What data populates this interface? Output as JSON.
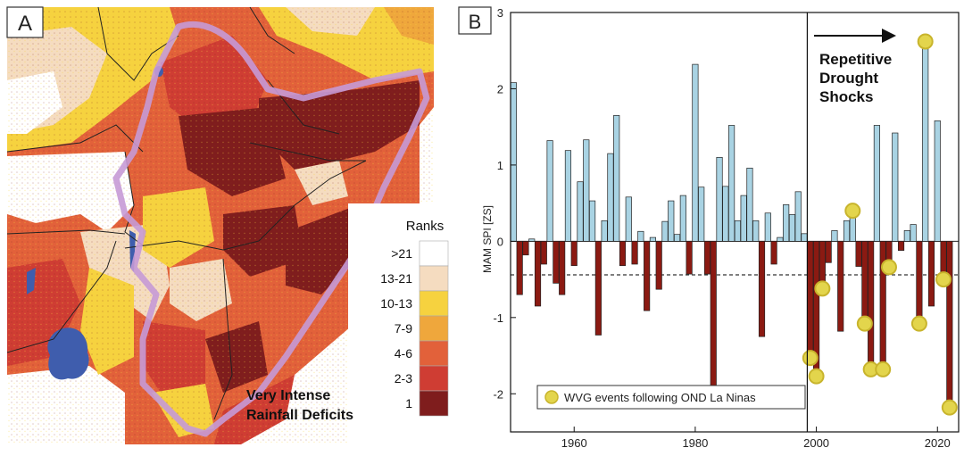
{
  "panel_a": {
    "label": "A",
    "legend_title": "Ranks",
    "legend": [
      {
        "label": ">21",
        "color": "#ffffff"
      },
      {
        "label": "13-21",
        "color": "#f5dcc0"
      },
      {
        "label": "10-13",
        "color": "#f6d23f"
      },
      {
        "label": "7-9",
        "color": "#efa73c"
      },
      {
        "label": "4-6",
        "color": "#e2613a"
      },
      {
        "label": "2-3",
        "color": "#cf3d33"
      },
      {
        "label": "1",
        "color": "#7f1d1d"
      }
    ],
    "annotation_line1": "Very Intense",
    "annotation_line2": "Rainfall Deficits",
    "outline_color": "#c79ad6"
  },
  "panel_b": {
    "label": "B",
    "arrow_text_1": "Repetitive",
    "arrow_text_2": "Drought",
    "arrow_text_3": "Shocks",
    "legend_label": "WVG events following OND La Ninas",
    "colors": {
      "positive": "#a9d3e3",
      "negative": "#8b1a12",
      "marker": "#e3d54c",
      "marker_edge": "#c8b42c"
    }
  },
  "chart_data": {
    "type": "bar",
    "ylabel": "MAM SPI [ZS]",
    "xlim": [
      1949.5,
      2023.5
    ],
    "ylim": [
      -2.5,
      3
    ],
    "xticks": [
      1960,
      1980,
      2000,
      2020
    ],
    "yticks": [
      -2,
      -1,
      0,
      1,
      2,
      3
    ],
    "threshold": -0.44,
    "divider_year": 1998.5,
    "years": [
      1950,
      1951,
      1952,
      1953,
      1954,
      1955,
      1956,
      1957,
      1958,
      1959,
      1960,
      1961,
      1962,
      1963,
      1964,
      1965,
      1966,
      1967,
      1968,
      1969,
      1970,
      1971,
      1972,
      1973,
      1974,
      1975,
      1976,
      1977,
      1978,
      1979,
      1980,
      1981,
      1982,
      1983,
      1984,
      1985,
      1986,
      1987,
      1988,
      1989,
      1990,
      1991,
      1992,
      1993,
      1994,
      1995,
      1996,
      1997,
      1998,
      1999,
      2000,
      2001,
      2002,
      2003,
      2004,
      2005,
      2006,
      2007,
      2008,
      2009,
      2010,
      2011,
      2012,
      2013,
      2014,
      2015,
      2016,
      2017,
      2018,
      2019,
      2020,
      2021,
      2022
    ],
    "values": [
      2.08,
      -0.7,
      -0.18,
      0.03,
      -0.85,
      -0.3,
      1.32,
      -0.55,
      -0.7,
      1.19,
      -0.32,
      0.78,
      1.33,
      0.53,
      -1.23,
      0.27,
      1.15,
      1.65,
      -0.32,
      0.58,
      -0.3,
      0.13,
      -0.91,
      0.05,
      -0.63,
      0.26,
      0.53,
      0.09,
      0.6,
      -0.43,
      2.32,
      0.71,
      -0.43,
      -1.9,
      1.1,
      0.72,
      1.52,
      0.27,
      0.6,
      0.96,
      0.27,
      -1.25,
      0.37,
      -0.3,
      0.05,
      0.48,
      0.35,
      0.65,
      0.1,
      -1.53,
      -1.77,
      -0.62,
      -0.28,
      0.14,
      -1.18,
      0.27,
      0.4,
      -0.33,
      -1.08,
      -1.68,
      1.52,
      -1.68,
      -0.34,
      1.42,
      -0.12,
      0.14,
      0.22,
      -1.08,
      2.62,
      -0.85,
      1.58,
      -0.5,
      -2.18
    ],
    "markers": [
      1999,
      2000,
      2001,
      2006,
      2008,
      2009,
      2011,
      2012,
      2017,
      2018,
      2021,
      2022
    ],
    "legend": [
      {
        "name": "WVG events following OND La Ninas"
      }
    ]
  }
}
